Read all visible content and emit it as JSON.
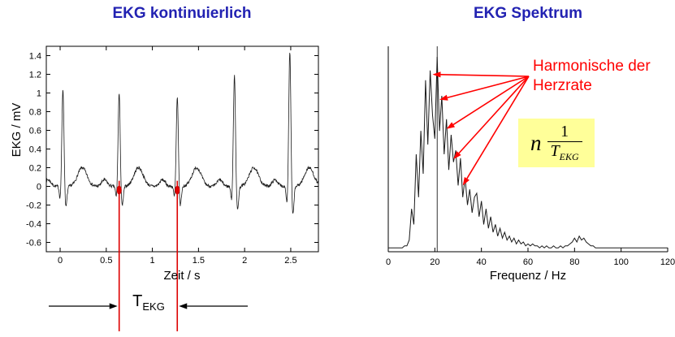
{
  "colors": {
    "title_blue": "#2222b2",
    "red": "#ff0000",
    "marker_red": "#dd0000",
    "trace": "#1a1a1a",
    "formula_bg": "#ffff99"
  },
  "chart_data": [
    {
      "type": "line",
      "title": "EKG kontinuierlich",
      "xlabel": "Zeit / s",
      "ylabel": "EKG / mV",
      "xlim": [
        -0.15,
        2.8
      ],
      "ylim": [
        -0.7,
        1.5
      ],
      "xticks": [
        0,
        0.5,
        1,
        1.5,
        2,
        2.5
      ],
      "xtick_labels": [
        "0",
        "0.5",
        "1",
        "1.5",
        "2",
        "2.5"
      ],
      "yticks": [
        -0.6,
        -0.4,
        -0.2,
        0,
        0.2,
        0.4,
        0.6,
        0.8,
        1,
        1.2,
        1.4
      ],
      "ytick_labels": [
        "-0.6",
        "-0.4",
        "-0.2",
        "0",
        "0.2",
        "0.4",
        "0.6",
        "0.8",
        "1",
        "1.2",
        "1.4"
      ],
      "grid": false,
      "series": [
        {
          "name": "EKG",
          "noise_seed": 7,
          "beats": [
            {
              "t": 0.03,
              "amp": 1.05
            },
            {
              "t": 0.64,
              "amp": 1.0
            },
            {
              "t": 1.27,
              "amp": 0.95
            },
            {
              "t": 1.89,
              "amp": 1.2
            },
            {
              "t": 2.49,
              "amp": 1.45
            }
          ],
          "morphology": {
            "r_w": 0.011,
            "q_a": 0.13,
            "q_off": 0.03,
            "q_w": 0.009,
            "s_a": 0.22,
            "s_off": 0.032,
            "s_w": 0.012,
            "t_a": 0.2,
            "t_off": 0.21,
            "t_w": 0.05,
            "p_a": 0.07,
            "p_off": 0.16,
            "p_w": 0.03,
            "noise": 0.016
          }
        }
      ],
      "annotations": {
        "red_markers_s": [
          0.64,
          1.27
        ],
        "dimension_y": 377,
        "interval_label": {
          "base": "T",
          "sub": "EKG"
        }
      }
    },
    {
      "type": "line",
      "title": "EKG  Spektrum",
      "xlabel": "Frequenz / Hz",
      "ylabel": "",
      "xlim": [
        0,
        120
      ],
      "ylim": [
        0,
        1.05
      ],
      "xticks": [
        0,
        20,
        40,
        60,
        80,
        100,
        120
      ],
      "xtick_labels": [
        "0",
        "20",
        "40",
        "60",
        "80",
        "100",
        "120"
      ],
      "grid": false,
      "x_start": 0,
      "x_step": 1,
      "y": [
        0.02,
        0.02,
        0.02,
        0.02,
        0.02,
        0.02,
        0.02,
        0.03,
        0.03,
        0.06,
        0.22,
        0.14,
        0.5,
        0.28,
        0.62,
        0.4,
        0.88,
        0.55,
        0.93,
        0.7,
        0.58,
        1.0,
        0.62,
        0.8,
        0.5,
        0.68,
        0.42,
        0.6,
        0.46,
        0.52,
        0.34,
        0.48,
        0.28,
        0.38,
        0.24,
        0.32,
        0.2,
        0.28,
        0.3,
        0.18,
        0.26,
        0.14,
        0.22,
        0.12,
        0.18,
        0.1,
        0.14,
        0.08,
        0.12,
        0.07,
        0.1,
        0.06,
        0.08,
        0.05,
        0.07,
        0.04,
        0.06,
        0.04,
        0.05,
        0.03,
        0.04,
        0.03,
        0.04,
        0.03,
        0.03,
        0.02,
        0.03,
        0.02,
        0.03,
        0.02,
        0.02,
        0.03,
        0.02,
        0.02,
        0.03,
        0.02,
        0.03,
        0.03,
        0.04,
        0.05,
        0.07,
        0.05,
        0.08,
        0.06,
        0.07,
        0.05,
        0.04,
        0.03,
        0.03,
        0.02,
        0.02,
        0.02,
        0.02,
        0.02,
        0.02,
        0.02,
        0.02,
        0.02,
        0.02,
        0.02,
        0.02,
        0.02,
        0.02,
        0.02,
        0.02,
        0.02,
        0.02,
        0.02,
        0.02,
        0.02,
        0.02,
        0.02,
        0.02,
        0.02,
        0.02,
        0.02,
        0.02,
        0.02,
        0.02,
        0.02,
        0.02
      ],
      "annotations": {
        "harmonics_label": "Harmonische der Herzrate",
        "marker_line_hz": 21,
        "arrow_origin_local": [
          196,
          94
        ],
        "arrow_targets": [
          {
            "f": 19,
            "v": 0.91
          },
          {
            "f": 22,
            "v": 0.78
          },
          {
            "f": 25,
            "v": 0.63
          },
          {
            "f": 28,
            "v": 0.475
          },
          {
            "f": 32,
            "v": 0.34
          }
        ],
        "formula": {
          "factor": "n",
          "numerator": "1",
          "den_base": "T",
          "den_sub": "EKG"
        }
      }
    }
  ]
}
